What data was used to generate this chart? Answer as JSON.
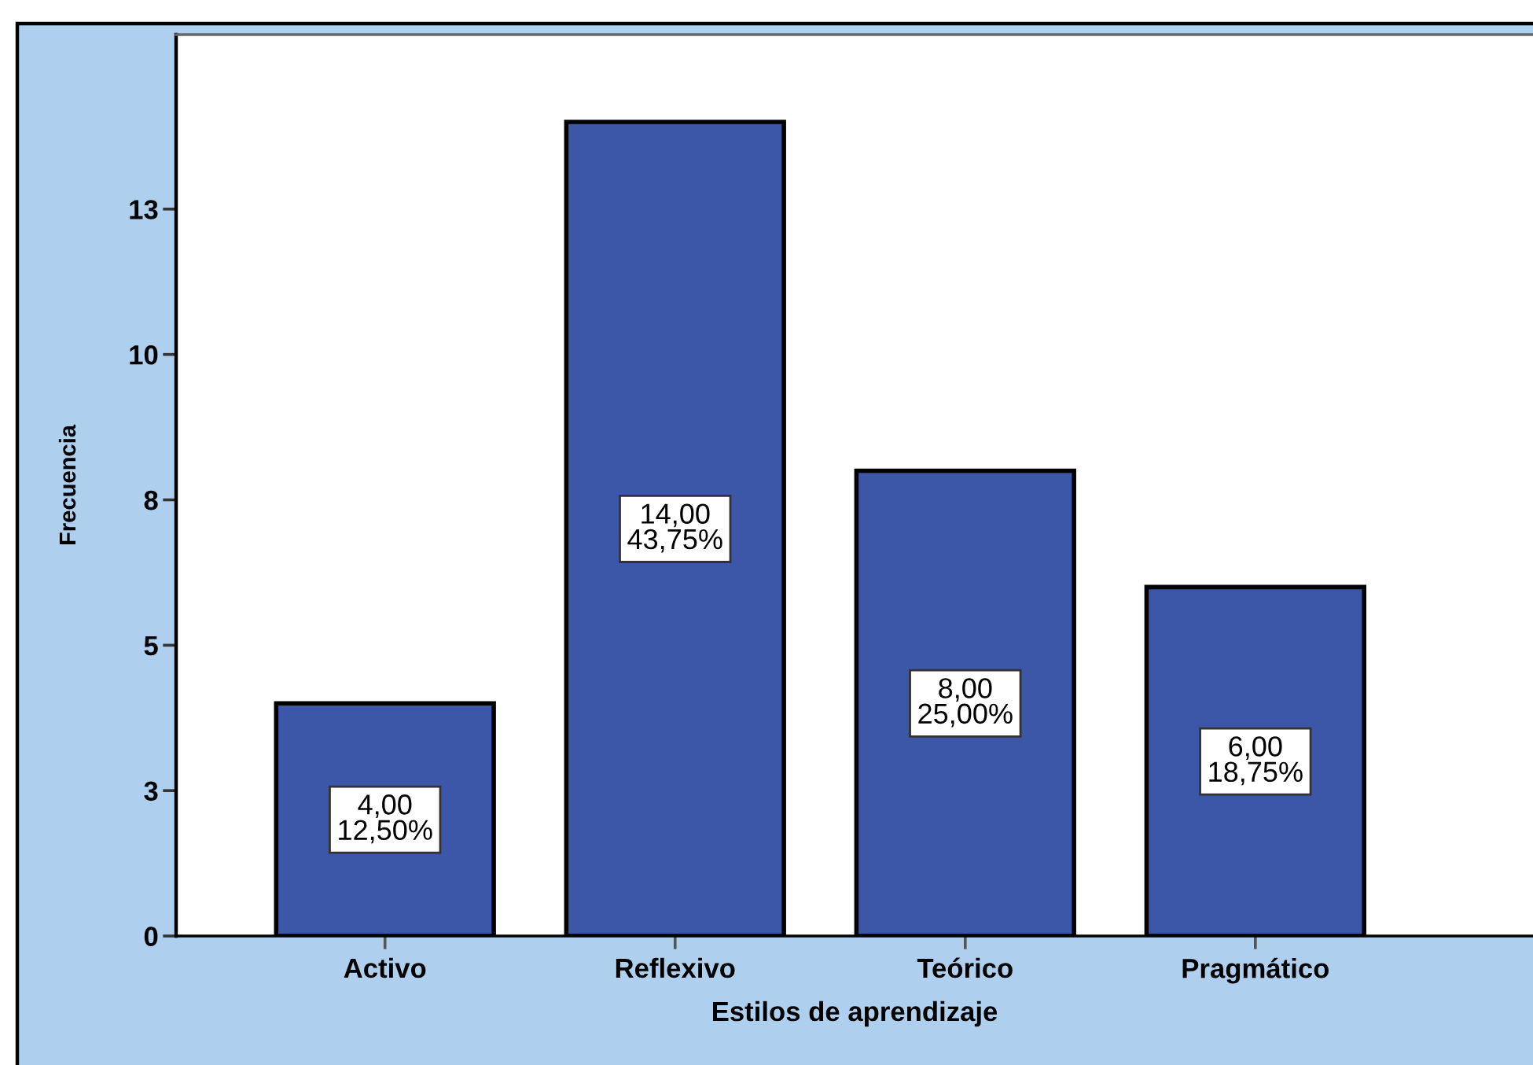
{
  "chart_data": {
    "type": "bar",
    "xlabel": "Estilos de aprendizaje",
    "ylabel": "Frecuencia",
    "categories": [
      "Activo",
      "Reflexivo",
      "Teórico",
      "Pragmático"
    ],
    "values": [
      4,
      14,
      8,
      6
    ],
    "value_labels": [
      "4,00\n12,50%",
      "14,00\n43,75%",
      "8,00\n25,00%",
      "6,00\n18,75%"
    ],
    "color": "#3c56a8",
    "ylim": [
      0,
      15.5
    ],
    "yticks": [
      0,
      {
        "value": 2.5,
        "label": "3"
      },
      5,
      {
        "value": 7.5,
        "label": "8"
      },
      10,
      {
        "value": 12.5,
        "label": "13"
      }
    ],
    "grid": false
  }
}
